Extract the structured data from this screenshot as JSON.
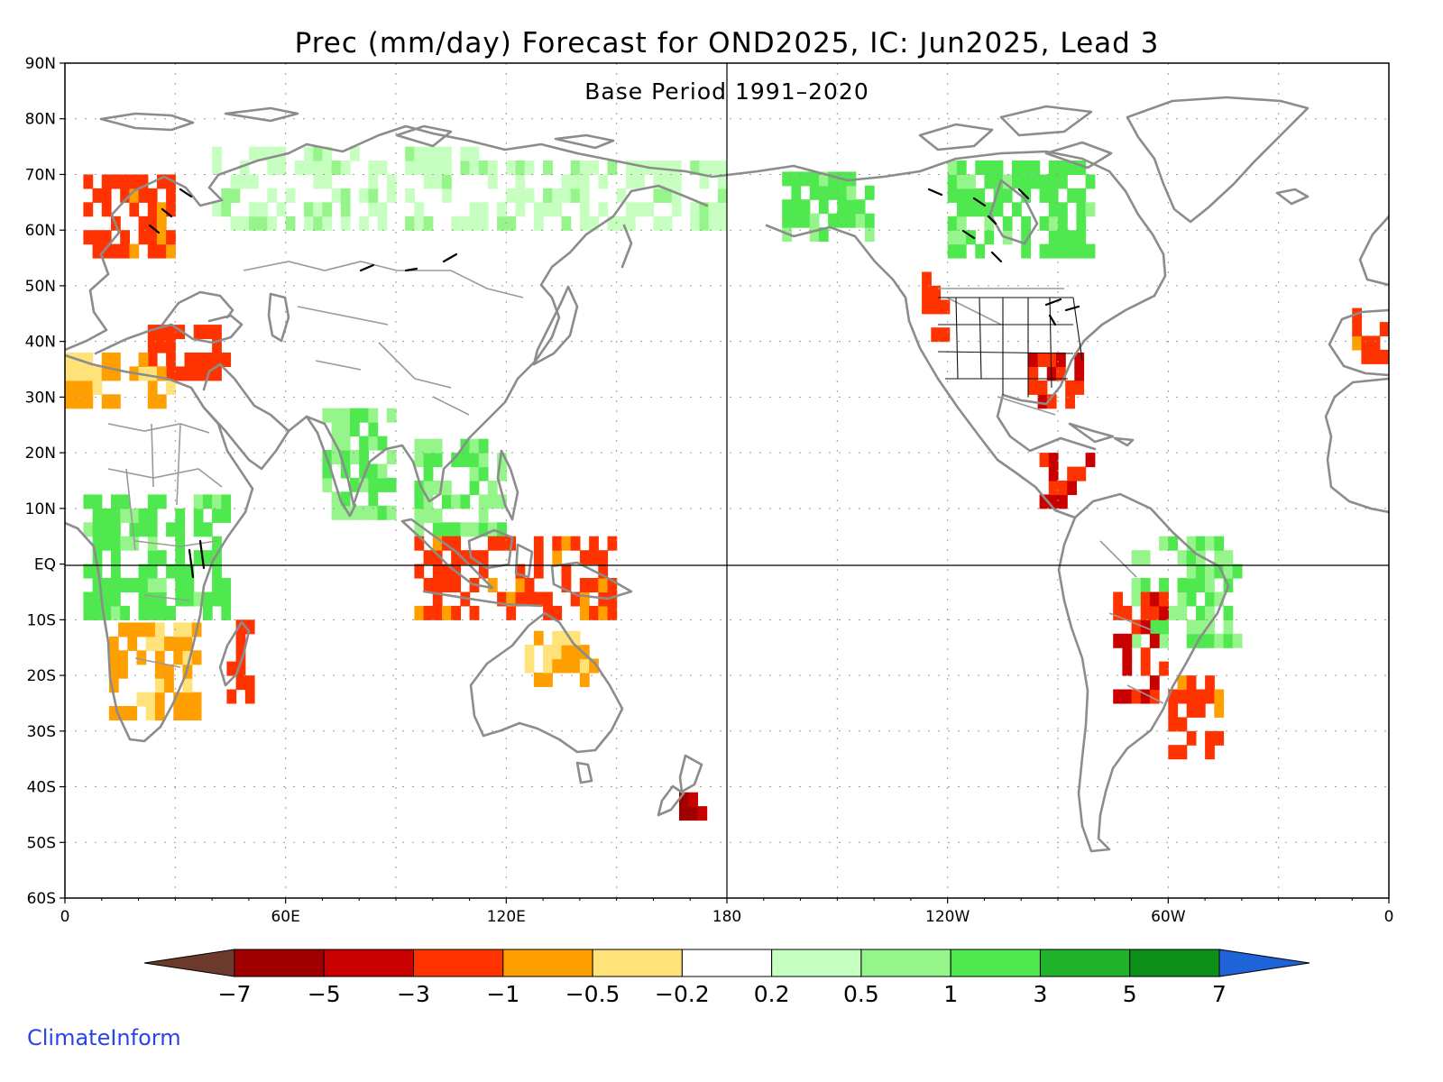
{
  "title": "Prec (mm/day) Forecast for OND2025, IC: Jun2025, Lead 3",
  "subtitle": "Base Period 1991–2020",
  "credit": "ClimateInform",
  "axes": {
    "lat_labels": [
      "90N",
      "80N",
      "70N",
      "60N",
      "50N",
      "40N",
      "30N",
      "20N",
      "10N",
      "EQ",
      "10S",
      "20S",
      "30S",
      "40S",
      "50S",
      "60S"
    ],
    "lon_labels": [
      "0",
      "60E",
      "120E",
      "180",
      "120W",
      "60W",
      "0"
    ]
  },
  "colorbar": {
    "boundaries": [
      "−7",
      "−5",
      "−3",
      "−1",
      "−0.5",
      "−0.2",
      "0.2",
      "0.5",
      "1",
      "3",
      "5",
      "7"
    ],
    "colors": [
      "#6b3a2a",
      "#a00000",
      "#c80000",
      "#ff3300",
      "#ff9f00",
      "#ffe27a",
      "#ffffff",
      "#c6ffc0",
      "#96f58a",
      "#4fe84f",
      "#1fb22a",
      "#0b8f17",
      "#1f63d8"
    ]
  },
  "chart_data": {
    "type": "heatmap",
    "title": "Prec (mm/day) Forecast for OND2025, IC: Jun2025, Lead 3",
    "subtitle": "Base Period 1991–2020",
    "projection": "cylindrical equidistant, centered 180",
    "lon_range": [
      0,
      360
    ],
    "lat_range": [
      -60,
      90
    ],
    "grid": "dotted every 30° lon / 10° lat",
    "reference_lines": [
      "equator",
      "180 meridian"
    ],
    "units": "mm/day",
    "anomaly_regions": [
      {
        "region": "Northern Europe / Scandinavia",
        "lon": [
          5,
          30
        ],
        "lat": [
          55,
          68
        ],
        "value": -1.5
      },
      {
        "region": "Mediterranean / Turkey",
        "lon": [
          20,
          45
        ],
        "lat": [
          33,
          42
        ],
        "value": -2
      },
      {
        "region": "North Africa coast",
        "lon": [
          0,
          30
        ],
        "lat": [
          28,
          37
        ],
        "value": -0.6
      },
      {
        "region": "Tropical Africa",
        "lon": [
          5,
          45
        ],
        "lat": [
          -10,
          12
        ],
        "value": 1.5
      },
      {
        "region": "Southern Africa",
        "lon": [
          12,
          35
        ],
        "lat": [
          -28,
          -12
        ],
        "value": -0.6
      },
      {
        "region": "Madagascar",
        "lon": [
          44,
          50
        ],
        "lat": [
          -25,
          -12
        ],
        "value": -2
      },
      {
        "region": "Northern Russia",
        "lon": [
          40,
          120
        ],
        "lat": [
          60,
          75
        ],
        "value": 0.4
      },
      {
        "region": "Eastern Siberia",
        "lon": [
          120,
          180
        ],
        "lat": [
          60,
          72
        ],
        "value": 0.4
      },
      {
        "region": "India",
        "lon": [
          70,
          90
        ],
        "lat": [
          8,
          28
        ],
        "value": 1
      },
      {
        "region": "Southeast Asia",
        "lon": [
          95,
          120
        ],
        "lat": [
          5,
          22
        ],
        "value": 1
      },
      {
        "region": "Maritime Continent",
        "lon": [
          95,
          150
        ],
        "lat": [
          -10,
          5
        ],
        "value": -1.5
      },
      {
        "region": "Northern Australia",
        "lon": [
          125,
          145
        ],
        "lat": [
          -22,
          -12
        ],
        "value": -0.6
      },
      {
        "region": "New Zealand South Island",
        "lon": [
          167,
          174
        ],
        "lat": [
          -46,
          -42
        ],
        "value": -5
      },
      {
        "region": "Alaska",
        "lon": [
          195,
          220
        ],
        "lat": [
          58,
          70
        ],
        "value": 1.5
      },
      {
        "region": "Northern Canada",
        "lon": [
          240,
          280
        ],
        "lat": [
          55,
          72
        ],
        "value": 1.5
      },
      {
        "region": "US Pacific Northwest coast",
        "lon": [
          233,
          240
        ],
        "lat": [
          40,
          52
        ],
        "value": -2
      },
      {
        "region": "US South Central / Gulf",
        "lon": [
          262,
          275
        ],
        "lat": [
          28,
          36
        ],
        "value": -3
      },
      {
        "region": "Central America",
        "lon": [
          265,
          280
        ],
        "lat": [
          10,
          18
        ],
        "value": -3
      },
      {
        "region": "Amazon / Brazil",
        "lon": [
          290,
          320
        ],
        "lat": [
          -15,
          5
        ],
        "value": 1
      },
      {
        "region": "Andes / Bolivia",
        "lon": [
          285,
          300
        ],
        "lat": [
          -25,
          -5
        ],
        "value": -3
      },
      {
        "region": "Southern Brazil / Uruguay",
        "lon": [
          300,
          315
        ],
        "lat": [
          -35,
          -22
        ],
        "value": -1.5
      },
      {
        "region": "Iberia",
        "lon": [
          350,
          360
        ],
        "lat": [
          36,
          44
        ],
        "value": -1.5
      }
    ]
  }
}
